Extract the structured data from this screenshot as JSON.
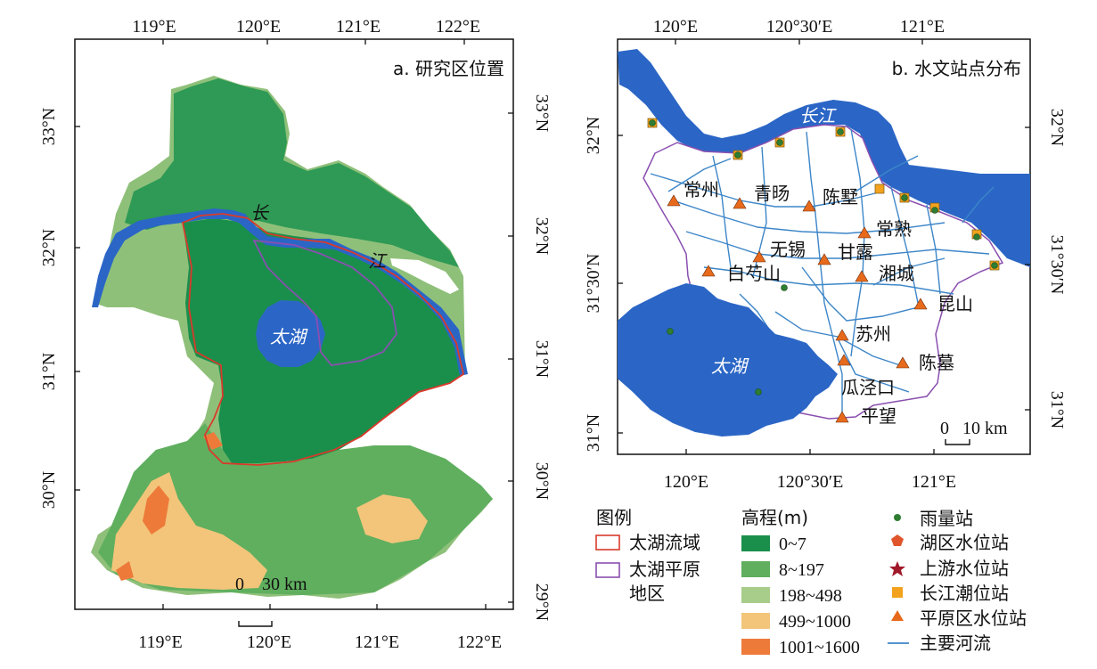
{
  "panel_a": {
    "title": "a. 研究区位置",
    "top_ticks": [
      "119°E",
      "120°E",
      "121°E",
      "122°E"
    ],
    "bottom_ticks": [
      "119°E",
      "120°E",
      "121°E",
      "122°E"
    ],
    "left_ticks": [
      "33°N",
      "32°N",
      "31°N",
      "30°N"
    ],
    "right_ticks": [
      "33°N",
      "32°N",
      "31°N",
      "30°N",
      "29°N"
    ],
    "labels": {
      "yangtze_1": "长",
      "yangtze_2": "江",
      "taihu": "太湖"
    },
    "scalebar": "0    30 km"
  },
  "panel_b": {
    "title": "b. 水文站点分布",
    "top_ticks": [
      "120°E",
      "120°30′E",
      "121°E"
    ],
    "bottom_ticks": [
      "120°E",
      "120°30′E",
      "121°E"
    ],
    "left_ticks": [
      "32°N",
      "31°30′N",
      "31°N"
    ],
    "right_ticks": [
      "32°N",
      "31°30′N",
      "31°N"
    ],
    "labels": {
      "yangtze": "长江",
      "taihu": "太湖"
    },
    "stations": [
      "常州",
      "青旸",
      "陈墅",
      "常熟",
      "无锡",
      "甘露",
      "白芍山",
      "湘城",
      "昆山",
      "苏州",
      "陈墓",
      "瓜泾口",
      "平望"
    ],
    "scalebar": "0   10 km"
  },
  "legend": {
    "title": "图例",
    "boundary_items": [
      "太湖流域",
      "太湖平原",
      "地区"
    ],
    "elevation_title": "高程(m)",
    "elevation_classes": [
      {
        "label": "0~7",
        "color": "#1a8f4c"
      },
      {
        "label": "8~197",
        "color": "#5faf5f"
      },
      {
        "label": "198~498",
        "color": "#a8cc8a"
      },
      {
        "label": "499~1000",
        "color": "#f2c57a"
      },
      {
        "label": "1001~1600",
        "color": "#ee7a3a"
      }
    ],
    "symbol_items": [
      "雨量站",
      "湖区水位站",
      "上游水位站",
      "长江潮位站",
      "平原区水位站",
      "主要河流"
    ]
  },
  "colors": {
    "water": "#2b66c6",
    "lowland": "#1a8f4c",
    "basin_boundary": "#d93a2b",
    "plain_boundary": "#8a4fb0",
    "river": "#3d86c8",
    "rain_station": "#2e7d32",
    "lake_station": "#e0552b",
    "upstream_station": "#a0182a",
    "tide_station": "#f2a21e",
    "plain_station": "#e76a1c"
  }
}
